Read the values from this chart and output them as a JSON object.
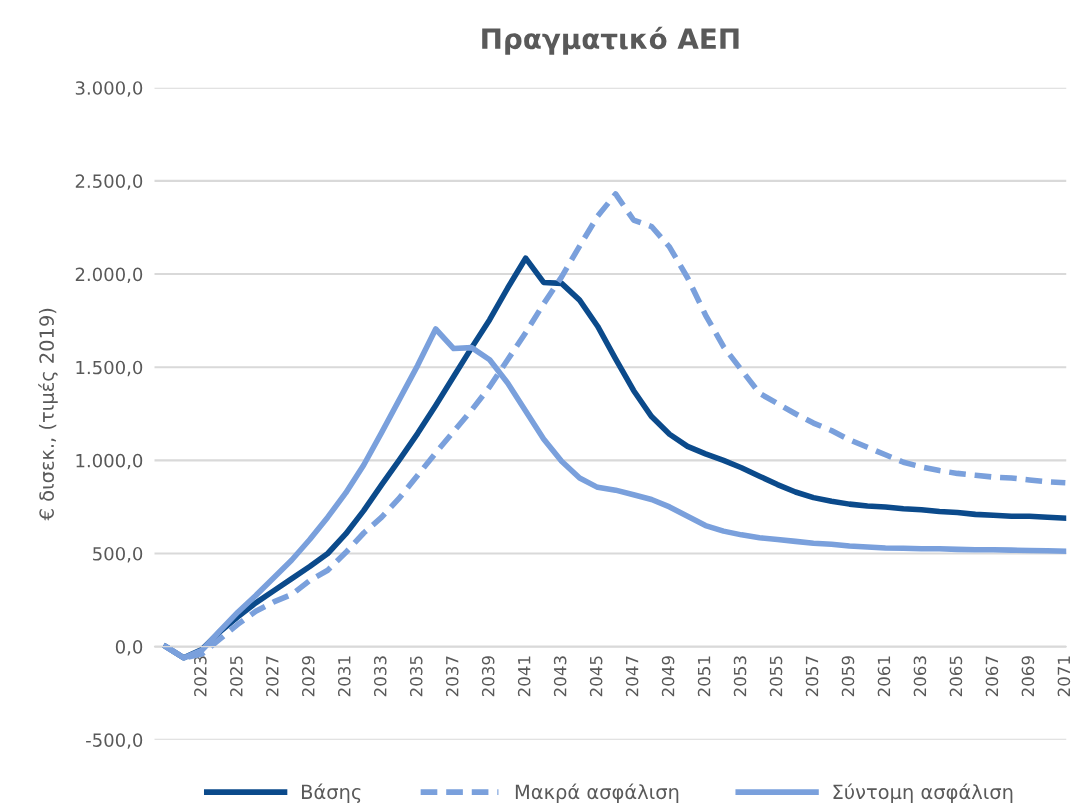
{
  "chart_data": {
    "type": "line",
    "title": "Πραγματικό ΑΕΠ",
    "ylabel": "€ δισεκ., (τιμές 2019)",
    "categories": [
      null,
      null,
      "2023",
      null,
      "2025",
      null,
      "2027",
      null,
      "2029",
      null,
      "2031",
      null,
      "2033",
      null,
      "2035",
      null,
      "2037",
      null,
      "2039",
      null,
      "2041",
      null,
      "2043",
      null,
      "2045",
      null,
      "2047",
      null,
      "2049",
      null,
      "2051",
      null,
      "2053",
      null,
      "2055",
      null,
      "2057",
      null,
      "2059",
      null,
      "2061",
      null,
      "2063",
      null,
      "2065",
      null,
      "2067",
      null,
      "2069",
      null,
      "2071"
    ],
    "series": [
      {
        "name": "Βάσης",
        "color": "#0b4a8b",
        "line_style": "solid",
        "values": [
          0,
          -60,
          -15,
          80,
          160,
          235,
          300,
          365,
          430,
          500,
          605,
          730,
          870,
          1005,
          1145,
          1295,
          1450,
          1605,
          1755,
          1925,
          2085,
          1955,
          1950,
          1860,
          1720,
          1545,
          1375,
          1235,
          1140,
          1075,
          1035,
          1000,
          960,
          915,
          870,
          830,
          800,
          780,
          765,
          755,
          750,
          740,
          735,
          725,
          720,
          710,
          705,
          700,
          700,
          695,
          690
        ]
      },
      {
        "name": "Μακρά ασφάλιση",
        "color": "#7aa0dc",
        "line_style": "dashed",
        "values": [
          0,
          -60,
          -40,
          40,
          120,
          190,
          240,
          280,
          355,
          410,
          505,
          610,
          695,
          800,
          920,
          1040,
          1155,
          1270,
          1395,
          1540,
          1685,
          1840,
          1985,
          2150,
          2310,
          2430,
          2290,
          2255,
          2145,
          1980,
          1780,
          1610,
          1485,
          1360,
          1305,
          1250,
          1200,
          1160,
          1110,
          1070,
          1030,
          990,
          965,
          945,
          930,
          920,
          910,
          905,
          895,
          885,
          880
        ]
      },
      {
        "name": "Σύντομη ασφάλιση",
        "color": "#7aa0dc",
        "line_style": "solid",
        "values": [
          0,
          -60,
          -20,
          85,
          185,
          275,
          370,
          465,
          575,
          695,
          825,
          975,
          1150,
          1330,
          1510,
          1705,
          1600,
          1605,
          1540,
          1415,
          1265,
          1115,
          995,
          905,
          855,
          840,
          815,
          790,
          750,
          700,
          650,
          620,
          600,
          585,
          575,
          565,
          555,
          550,
          540,
          535,
          530,
          528,
          525,
          525,
          522,
          520,
          520,
          518,
          516,
          515,
          512
        ]
      }
    ],
    "ylim": [
      -500,
      3000
    ],
    "yticks": [
      {
        "value": -500,
        "label": "-500,0"
      },
      {
        "value": 0,
        "label": "0,0"
      },
      {
        "value": 500,
        "label": "500,0"
      },
      {
        "value": 1000,
        "label": "1.000,0"
      },
      {
        "value": 1500,
        "label": "1.500,0"
      },
      {
        "value": 2000,
        "label": "2.000,0"
      },
      {
        "value": 2500,
        "label": "2.500,0"
      },
      {
        "value": 3000,
        "label": "3.000,0"
      }
    ],
    "grid": "y",
    "legend": "bottom"
  }
}
